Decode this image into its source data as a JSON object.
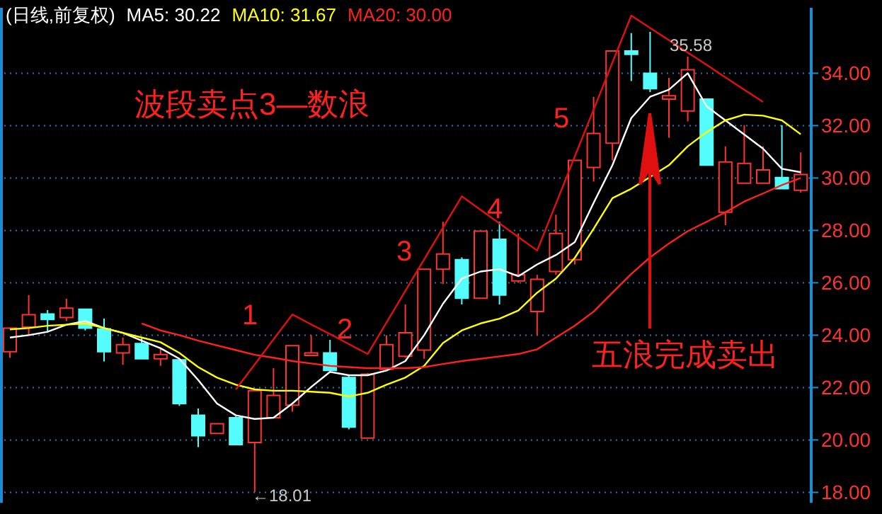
{
  "chart_data": {
    "type": "candlestick",
    "title": "(日线,前复权)",
    "categories": [
      null,
      null,
      null,
      null,
      null,
      null,
      null,
      null,
      null,
      null,
      null,
      null,
      null,
      null,
      null,
      null,
      null,
      null,
      null,
      null,
      null,
      null,
      null,
      null,
      null,
      null,
      null,
      null,
      null,
      null,
      null,
      null,
      null,
      null,
      null,
      null,
      null,
      null,
      null,
      null,
      null,
      null,
      null
    ],
    "ohlc": [
      [
        23.37,
        24.3,
        23.14,
        24.27
      ],
      [
        24.31,
        25.53,
        24.0,
        24.78
      ],
      [
        24.81,
        24.96,
        24.13,
        24.6
      ],
      [
        24.67,
        25.39,
        24.54,
        25.03
      ],
      [
        24.99,
        25.0,
        24.18,
        24.27
      ],
      [
        24.24,
        24.63,
        23.0,
        23.37
      ],
      [
        23.32,
        23.91,
        22.87,
        23.64
      ],
      [
        23.68,
        23.91,
        23.1,
        23.1
      ],
      [
        23.1,
        23.5,
        22.83,
        23.26
      ],
      [
        23.06,
        23.06,
        21.3,
        21.39
      ],
      [
        20.94,
        21.2,
        19.73,
        20.16
      ],
      [
        20.25,
        20.62,
        20.25,
        20.62
      ],
      [
        20.85,
        20.9,
        19.82,
        19.82
      ],
      [
        19.9,
        21.88,
        18.01,
        21.88
      ],
      [
        20.85,
        22.74,
        20.85,
        21.7
      ],
      [
        21.33,
        23.6,
        21.08,
        23.6
      ],
      [
        23.23,
        24.0,
        23.23,
        23.32
      ],
      [
        23.32,
        23.82,
        22.65,
        22.65
      ],
      [
        22.38,
        22.5,
        20.4,
        20.49
      ],
      [
        20.07,
        22.56,
        20.07,
        22.51
      ],
      [
        22.7,
        24.0,
        22.7,
        23.64
      ],
      [
        23.19,
        25.17,
        23.14,
        24.09
      ],
      [
        23.43,
        26.52,
        23.1,
        26.52
      ],
      [
        26.52,
        28.33,
        25.95,
        27.1
      ],
      [
        26.88,
        26.97,
        25.17,
        25.41
      ],
      [
        25.41,
        27.97,
        25.41,
        27.97
      ],
      [
        27.66,
        28.33,
        25.17,
        25.53
      ],
      [
        26.07,
        27.88,
        26.0,
        26.31
      ],
      [
        24.9,
        26.3,
        24.0,
        26.13
      ],
      [
        26.43,
        28.6,
        26.3,
        27.88
      ],
      [
        26.88,
        30.67,
        26.7,
        30.67
      ],
      [
        30.4,
        33.1,
        29.86,
        31.7
      ],
      [
        31.33,
        34.85,
        30.67,
        34.85
      ],
      [
        34.85,
        35.53,
        33.7,
        34.72
      ],
      [
        34.0,
        35.58,
        33.28,
        33.41
      ],
      [
        33.01,
        33.82,
        31.54,
        33.14
      ],
      [
        32.56,
        34.63,
        32.16,
        34.13
      ],
      [
        33.01,
        33.01,
        30.49,
        30.49
      ],
      [
        28.69,
        31.21,
        28.2,
        30.61
      ],
      [
        29.8,
        32.02,
        29.8,
        30.56
      ],
      [
        29.8,
        31.21,
        29.8,
        30.31
      ],
      [
        30.02,
        32.02,
        29.59,
        29.59
      ],
      [
        29.53,
        30.98,
        29.44,
        30.13
      ]
    ],
    "series": [
      {
        "name": "MA5: 30.22",
        "color": "#ffffff",
        "type": "line",
        "values": [
          23.91,
          24.0,
          24.13,
          24.4,
          24.54,
          24.27,
          24.09,
          23.79,
          23.5,
          23.1,
          22.29,
          21.39,
          20.94,
          20.8,
          20.85,
          21.39,
          22.02,
          22.6,
          22.47,
          22.47,
          22.65,
          23.01,
          24.0,
          25.2,
          26.16,
          26.43,
          26.52,
          26.25,
          26.7,
          27.06,
          27.55,
          29.05,
          30.49,
          32.29,
          33.1,
          33.37,
          34.0,
          32.74,
          32.2,
          31.66,
          31.12,
          30.35,
          30.22
        ]
      },
      {
        "name": "MA10: 31.67",
        "color": "#ffff00",
        "type": "line",
        "values": [
          24.22,
          24.27,
          24.36,
          24.4,
          24.45,
          24.27,
          24.09,
          23.91,
          23.73,
          23.32,
          22.78,
          22.38,
          22.11,
          21.93,
          21.88,
          21.88,
          21.84,
          21.8,
          21.66,
          21.8,
          22.11,
          22.38,
          22.83,
          23.7,
          24.18,
          24.45,
          24.63,
          24.94,
          25.62,
          26.16,
          26.95,
          28.06,
          29.23,
          29.59,
          30.04,
          30.49,
          31.21,
          31.75,
          32.2,
          32.42,
          32.38,
          32.2,
          31.67
        ]
      },
      {
        "name": "MA20: 30.00",
        "color": "#ff2020",
        "type": "line",
        "values": [
          null,
          null,
          null,
          null,
          null,
          null,
          null,
          24.45,
          24.18,
          24.0,
          23.79,
          23.61,
          23.43,
          23.25,
          23.14,
          23.01,
          22.92,
          22.83,
          22.78,
          22.74,
          22.74,
          22.74,
          22.78,
          22.9,
          23.01,
          23.1,
          23.19,
          23.28,
          23.46,
          23.91,
          24.36,
          24.9,
          25.62,
          26.34,
          26.97,
          27.5,
          27.97,
          28.33,
          28.69,
          29.1,
          29.41,
          29.73,
          30.0
        ]
      },
      {
        "color": "#e01010",
        "type": "line",
        "values": [
          null,
          null,
          null,
          null,
          null,
          null,
          null,
          null,
          null,
          null,
          null,
          null,
          21.93,
          22.88,
          23.84,
          24.79,
          24.41,
          24.04,
          23.66,
          23.28,
          24.48,
          25.69,
          26.89,
          28.1,
          29.3,
          28.78,
          28.27,
          27.75,
          27.23,
          29.02,
          30.82,
          32.61,
          34.41,
          36.2,
          35.73,
          35.26,
          34.79,
          34.32,
          33.84,
          33.37,
          32.9,
          null,
          null
        ]
      }
    ],
    "ylim": [
      17.6,
      36.5
    ],
    "yticks": [
      {
        "value": 18,
        "label": "18.00"
      },
      {
        "value": 20,
        "label": "20.00"
      },
      {
        "value": 22,
        "label": "22.00"
      },
      {
        "value": 24,
        "label": "24.00"
      },
      {
        "value": 26,
        "label": "26.00"
      },
      {
        "value": 28,
        "label": "28.00"
      },
      {
        "value": 30,
        "label": "30.00"
      },
      {
        "value": 32,
        "label": "32.00"
      },
      {
        "value": 34,
        "label": "34.00"
      }
    ],
    "grid": "y",
    "legend": "top left",
    "annotations": [
      "波段卖点3—数浪",
      "五浪完成卖出",
      "1",
      "2",
      "3",
      "4",
      "5",
      "35.58",
      "←18.01"
    ]
  }
}
